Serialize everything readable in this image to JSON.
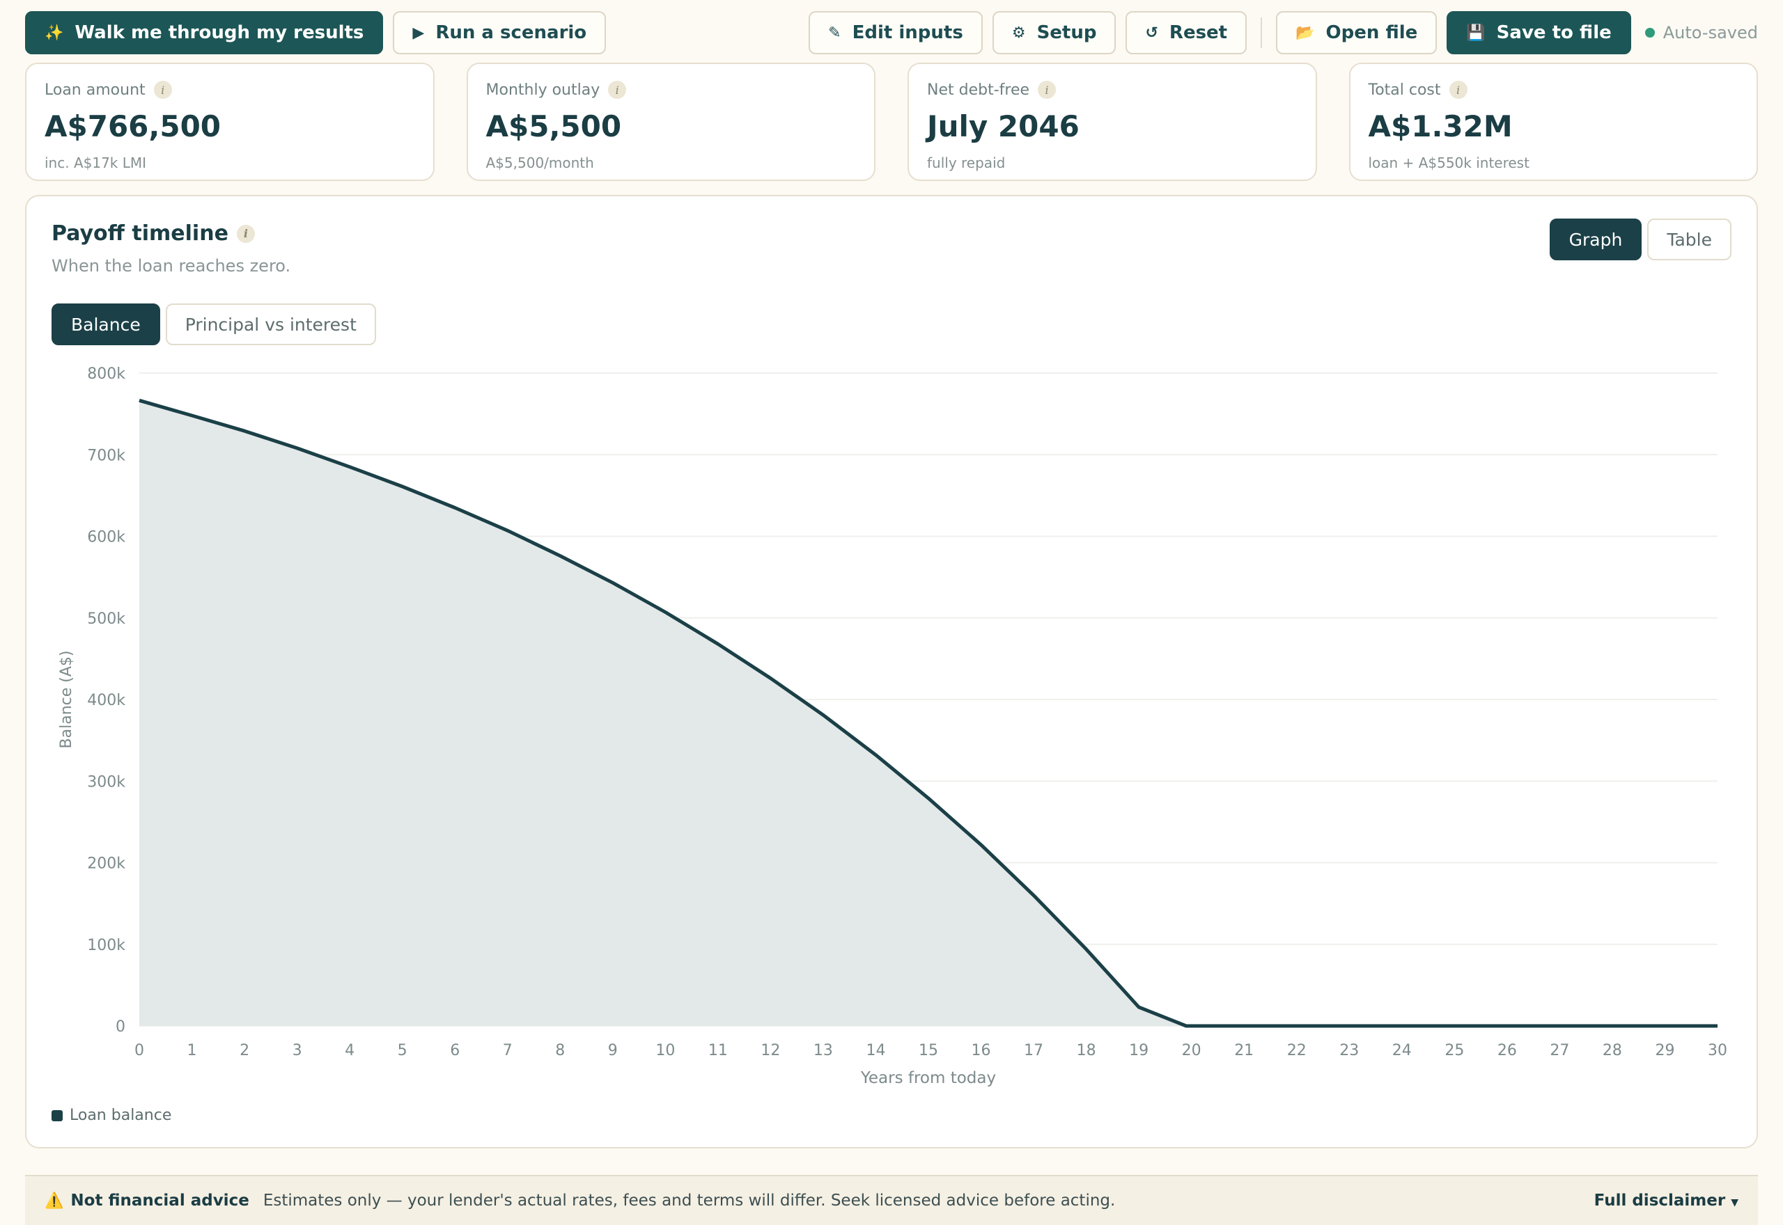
{
  "toolbar": {
    "walk_label": "Walk me through my results",
    "scenario_label": "Run a scenario",
    "edit_label": "Edit inputs",
    "setup_label": "Setup",
    "reset_label": "Reset",
    "open_label": "Open file",
    "save_label": "Save to file",
    "status": "Auto-saved"
  },
  "cards": [
    {
      "label": "Loan amount",
      "value": "A$766,500",
      "sub": "inc. A$17k LMI"
    },
    {
      "label": "Monthly outlay",
      "value": "A$5,500",
      "sub": "A$5,500/month"
    },
    {
      "label": "Net debt-free",
      "value": "July 2046",
      "sub": "fully repaid"
    },
    {
      "label": "Total cost",
      "value": "A$1.32M",
      "sub": "loan + A$550k interest"
    }
  ],
  "panel": {
    "title": "Payoff timeline",
    "subtitle": "When the loan reaches zero.",
    "view_options": [
      "Graph",
      "Table"
    ],
    "view_selected": "Graph",
    "metric_options": [
      "Balance",
      "Principal vs interest"
    ],
    "metric_selected": "Balance"
  },
  "chart_data": {
    "type": "area",
    "xlabel": "Years from today",
    "ylabel": "Balance (A$)",
    "xlim": [
      0,
      30
    ],
    "ylim": [
      0,
      800000
    ],
    "yticks": [
      0,
      100000,
      200000,
      300000,
      400000,
      500000,
      600000,
      700000,
      800000
    ],
    "ytick_labels": [
      "0",
      "100k",
      "200k",
      "300k",
      "400k",
      "500k",
      "600k",
      "700k",
      "800k"
    ],
    "xticks": [
      0,
      1,
      2,
      3,
      4,
      5,
      6,
      7,
      8,
      9,
      10,
      11,
      12,
      13,
      14,
      15,
      16,
      17,
      18,
      19,
      20,
      21,
      22,
      23,
      24,
      25,
      26,
      27,
      28,
      29,
      30
    ],
    "grid": true,
    "series": [
      {
        "name": "Loan balance",
        "color": "#1b4047",
        "x": [
          0,
          1,
          2,
          3,
          4,
          5,
          6,
          7,
          8,
          9,
          10,
          11,
          12,
          13,
          14,
          15,
          16,
          17,
          18,
          19,
          19.9,
          20,
          21,
          22,
          23,
          24,
          25,
          26,
          27,
          28,
          29,
          30
        ],
        "values": [
          766500,
          748000,
          729000,
          708000,
          685000,
          661000,
          635000,
          607000,
          576000,
          543000,
          507000,
          468000,
          426000,
          381000,
          332000,
          279000,
          222000,
          160000,
          94000,
          23000,
          0,
          0,
          0,
          0,
          0,
          0,
          0,
          0,
          0,
          0,
          0,
          0
        ]
      }
    ]
  },
  "footer": {
    "title": "Not financial advice",
    "text": "Estimates only — your lender's actual rates, fees and terms will differ. Seek licensed advice before acting.",
    "link": "Full disclaimer"
  },
  "colors": {
    "primary": "#1d5656",
    "dark": "#1b4047",
    "status_dot": "#2f9a7a",
    "area_fill": "#e3e8e9"
  },
  "icons": {
    "walk": "sparkles-icon",
    "scenario": "play-icon",
    "edit": "pencil-icon",
    "setup": "gear-icon",
    "reset": "reset-icon",
    "open": "folder-icon",
    "save": "floppy-disk-icon",
    "warning": "warning-icon"
  }
}
